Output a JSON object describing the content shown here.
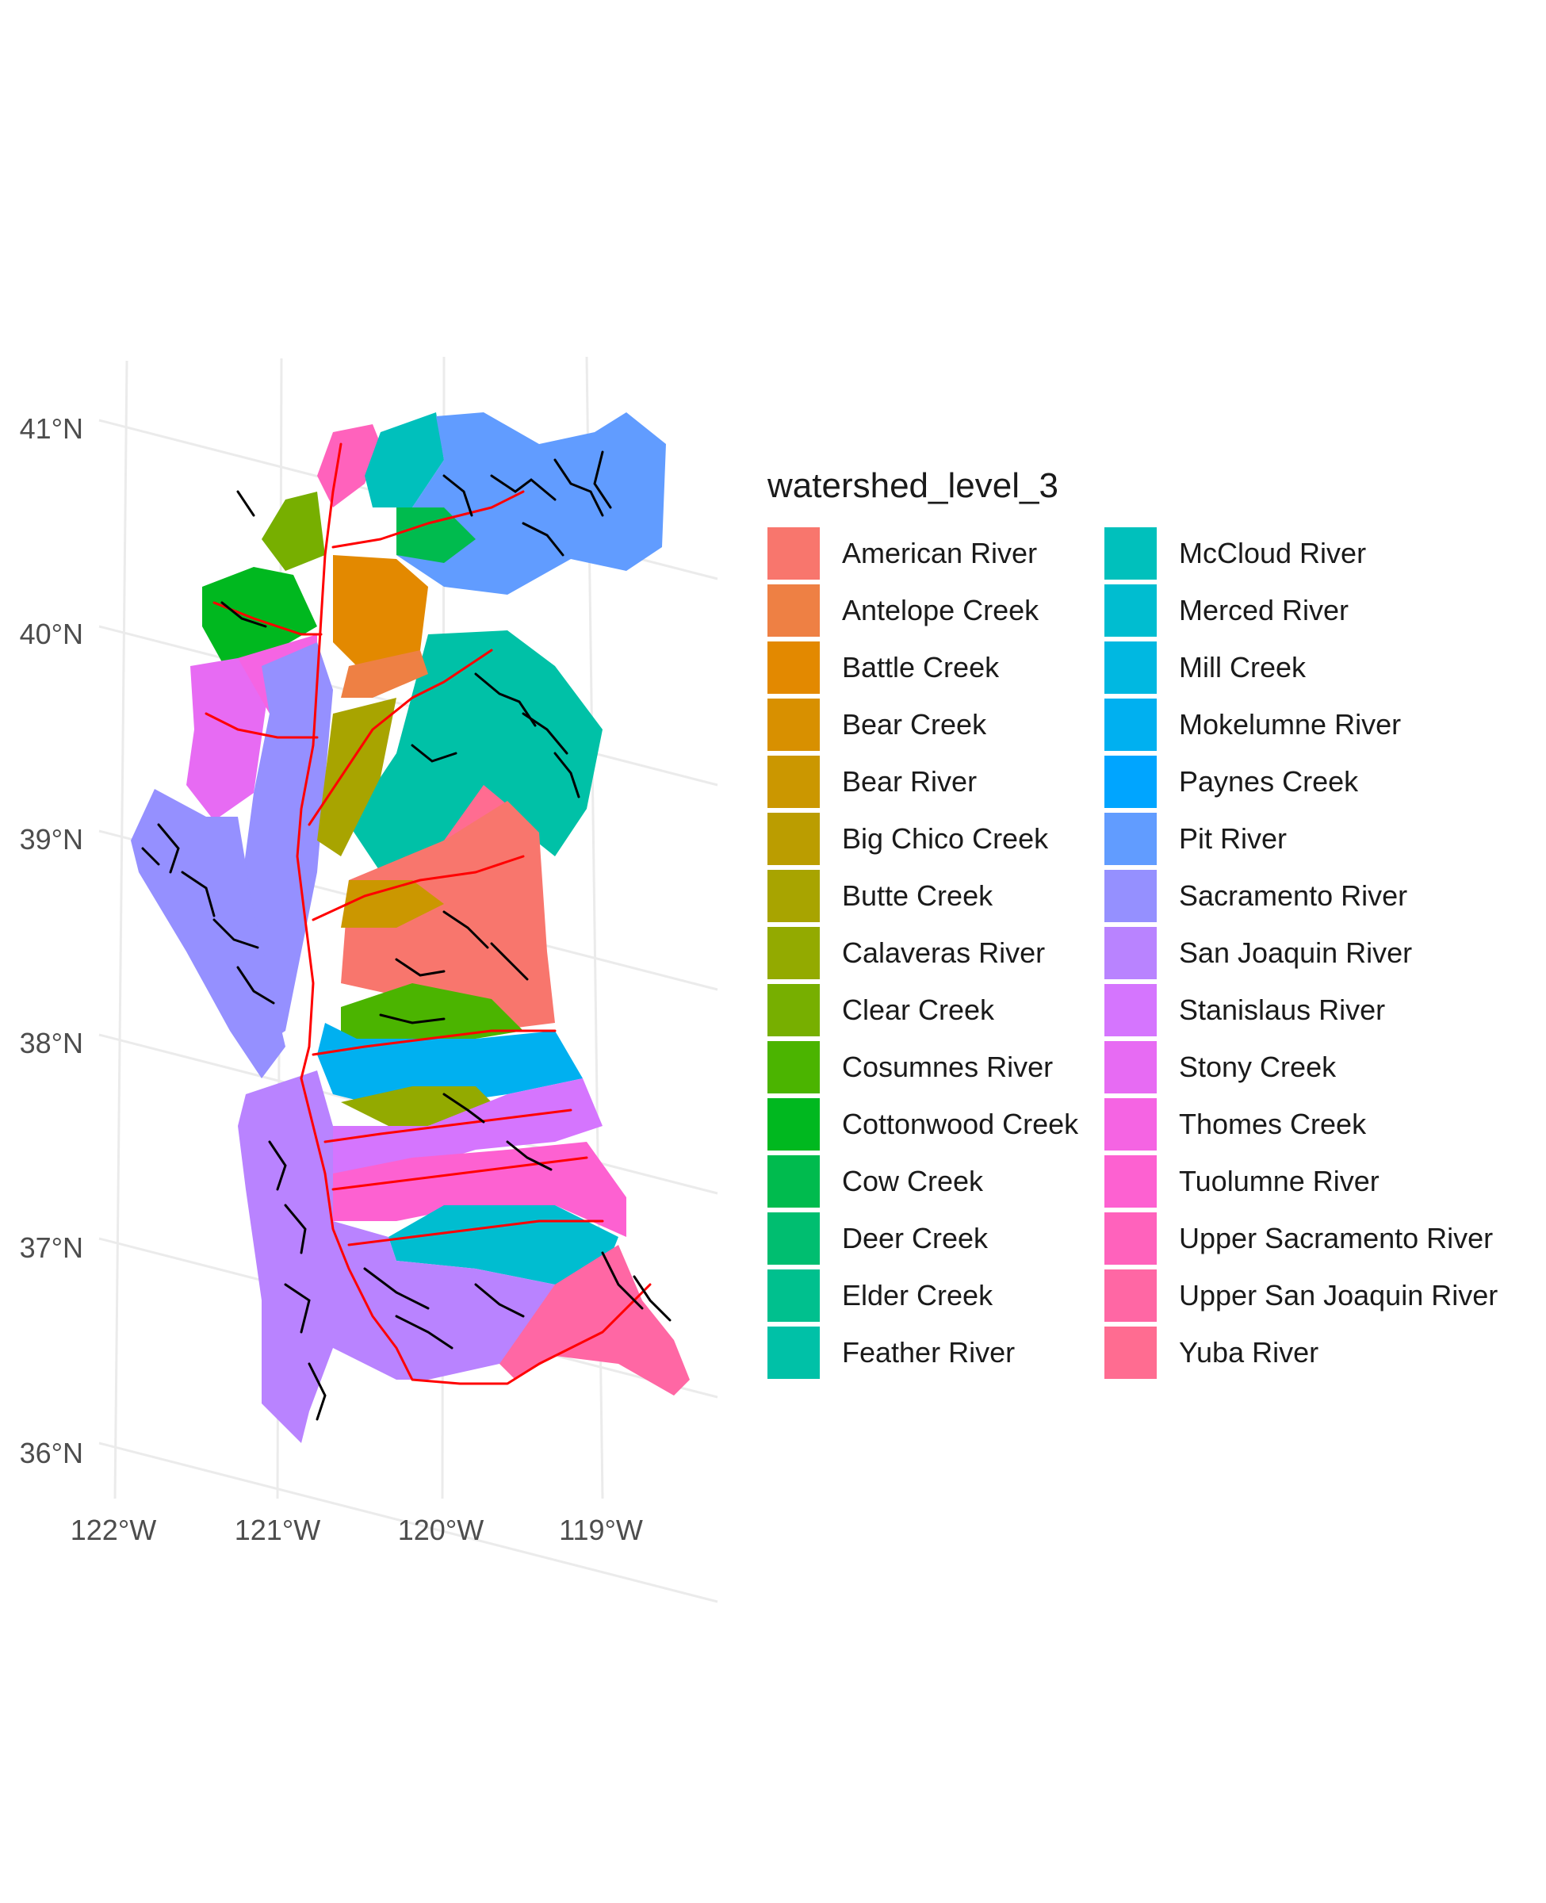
{
  "map": {
    "lat_labels": [
      "41°N",
      "40°N",
      "39°N",
      "38°N",
      "37°N",
      "36°N"
    ],
    "lon_labels": [
      "122°W",
      "121°W",
      "120°W",
      "119°W"
    ],
    "grid_color": "#ebebeb",
    "river_color": "#ff0000",
    "stream_color": "#000000"
  },
  "legend": {
    "title": "watershed_level_3",
    "items": [
      {
        "label": "American River",
        "color": "#F8766D"
      },
      {
        "label": "Antelope Creek",
        "color": "#EE8044"
      },
      {
        "label": "Battle Creek",
        "color": "#E38900"
      },
      {
        "label": "Bear Creek",
        "color": "#D89000"
      },
      {
        "label": "Bear River",
        "color": "#CB9700"
      },
      {
        "label": "Big Chico Creek",
        "color": "#BB9D00"
      },
      {
        "label": "Butte Creek",
        "color": "#A8A400"
      },
      {
        "label": "Calaveras River",
        "color": "#93AA00"
      },
      {
        "label": "Clear Creek",
        "color": "#77AF00"
      },
      {
        "label": "Cosumnes River",
        "color": "#4BB400"
      },
      {
        "label": "Cottonwood Creek",
        "color": "#00B81F"
      },
      {
        "label": "Cow Creek",
        "color": "#00BB4E"
      },
      {
        "label": "Deer Creek",
        "color": "#00BE70"
      },
      {
        "label": "Elder Creek",
        "color": "#00C08E"
      },
      {
        "label": "Feather River",
        "color": "#00C1A7"
      },
      {
        "label": "McCloud River",
        "color": "#00C0BC"
      },
      {
        "label": "Merced River",
        "color": "#00BDD0"
      },
      {
        "label": "Mill Creek",
        "color": "#00B8E1"
      },
      {
        "label": "Mokelumne River",
        "color": "#00B0F0"
      },
      {
        "label": "Paynes Creek",
        "color": "#00A5FF"
      },
      {
        "label": "Pit River",
        "color": "#619CFF"
      },
      {
        "label": "Sacramento River",
        "color": "#9590FF"
      },
      {
        "label": "San Joaquin River",
        "color": "#B983FF"
      },
      {
        "label": "Stanislaus River",
        "color": "#D575FE"
      },
      {
        "label": "Stony Creek",
        "color": "#E76BF3"
      },
      {
        "label": "Thomes Creek",
        "color": "#F564E3"
      },
      {
        "label": "Tuolumne River",
        "color": "#FD61D1"
      },
      {
        "label": "Upper Sacramento River",
        "color": "#FF62BC"
      },
      {
        "label": "Upper San Joaquin River",
        "color": "#FF67A4"
      },
      {
        "label": "Yuba River",
        "color": "#FF6C91"
      }
    ]
  }
}
